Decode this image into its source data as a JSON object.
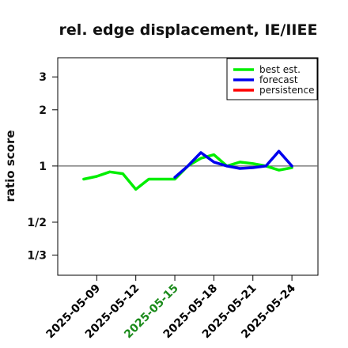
{
  "chart_data": {
    "type": "line",
    "title": "rel. edge displacement, IE/IIEE",
    "ylabel": "ratio score",
    "xlabel": "",
    "y_scale": "log",
    "ylim": [
      0.26,
      3.8
    ],
    "y_ticks": [
      {
        "value": 3,
        "label": "3"
      },
      {
        "value": 2,
        "label": "2"
      },
      {
        "value": 1,
        "label": "1"
      },
      {
        "value": 0.5,
        "label": "1/2"
      },
      {
        "value": 0.3333,
        "label": "1/3"
      }
    ],
    "reference_line": 1,
    "x_ticks": [
      {
        "label": "2025-05-09",
        "color": "#000000"
      },
      {
        "label": "2025-05-12",
        "color": "#000000"
      },
      {
        "label": "2025-05-15",
        "color": "#1a8a1a"
      },
      {
        "label": "2025-05-18",
        "color": "#000000"
      },
      {
        "label": "2025-05-21",
        "color": "#000000"
      },
      {
        "label": "2025-05-24",
        "color": "#000000"
      }
    ],
    "xlim": [
      "2025-05-06",
      "2025-05-26"
    ],
    "legend_position": "top-right",
    "series": [
      {
        "name": "best est.",
        "color": "#00ee00",
        "x": [
          "2025-05-08",
          "2025-05-09",
          "2025-05-10",
          "2025-05-11",
          "2025-05-12",
          "2025-05-13",
          "2025-05-14",
          "2025-05-15",
          "2025-05-16",
          "2025-05-17",
          "2025-05-18",
          "2025-05-19",
          "2025-05-20",
          "2025-05-21",
          "2025-05-22",
          "2025-05-23",
          "2025-05-24"
        ],
        "values": [
          0.85,
          0.88,
          0.93,
          0.91,
          0.75,
          0.85,
          0.85,
          0.85,
          1.0,
          1.1,
          1.15,
          1.0,
          1.05,
          1.03,
          1.0,
          0.95,
          0.98
        ]
      },
      {
        "name": "forecast",
        "color": "#0000ee",
        "x": [
          "2025-05-15",
          "2025-05-16",
          "2025-05-17",
          "2025-05-18",
          "2025-05-19",
          "2025-05-20",
          "2025-05-21",
          "2025-05-22",
          "2025-05-23",
          "2025-05-24"
        ],
        "values": [
          0.87,
          1.0,
          1.18,
          1.05,
          1.0,
          0.97,
          0.98,
          1.0,
          1.2,
          1.0
        ]
      },
      {
        "name": "persistence",
        "color": "#ff0000",
        "x": [],
        "values": []
      }
    ]
  }
}
